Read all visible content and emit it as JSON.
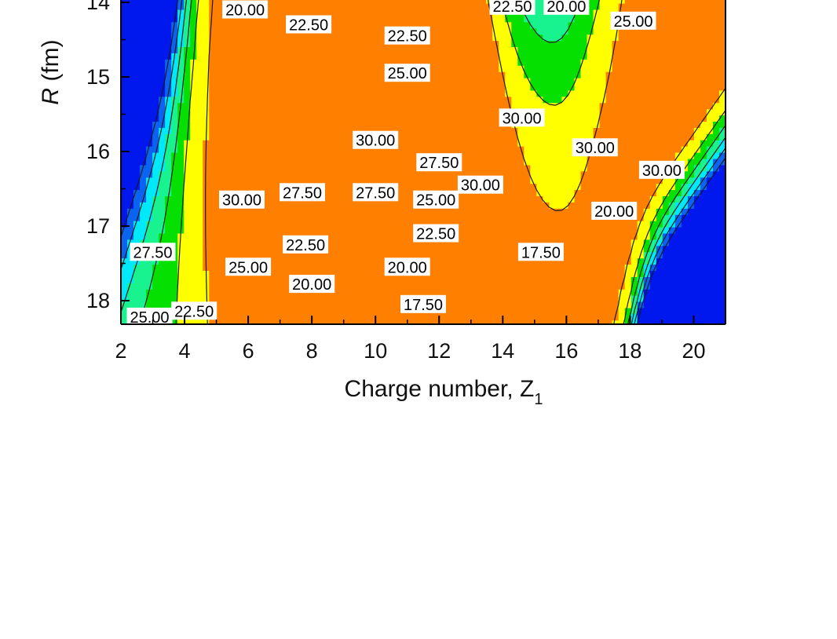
{
  "chart_data": {
    "type": "contour",
    "xlabel": "Charge number, Z",
    "xlabel_subscript": "1",
    "ylabel_var": "R",
    "ylabel_unit": "(fm)",
    "xlim": [
      2,
      21
    ],
    "ylim": [
      13.9,
      18.3
    ],
    "y_inverted": true,
    "x_ticks": [
      2,
      4,
      6,
      8,
      10,
      12,
      14,
      16,
      18,
      20
    ],
    "y_ticks": [
      14,
      15,
      16,
      17,
      18
    ],
    "levels": [
      17.5,
      20.0,
      22.5,
      25.0,
      27.5,
      30.0
    ],
    "colormap": [
      "#0018ee",
      "#0a64f0",
      "#00e9fa",
      "#18f28f",
      "#05e000",
      "#ffff00",
      "#ff8000",
      "#f00000"
    ],
    "peaks": [
      {
        "x": 2.0,
        "y": 15.0,
        "value": -5
      },
      {
        "x": 21.0,
        "y": 18.0,
        "value": 0
      },
      {
        "x": 3.0,
        "y": 16.2,
        "value": 27
      },
      {
        "x": 5.0,
        "y": 15.9,
        "value": 31
      },
      {
        "x": 9.2,
        "y": 15.7,
        "value": 34
      },
      {
        "x": 13.0,
        "y": 15.5,
        "value": 33
      },
      {
        "x": 15.0,
        "y": 15.4,
        "value": 31
      },
      {
        "x": 17.0,
        "y": 15.2,
        "value": 31
      },
      {
        "x": 19.8,
        "y": 15.0,
        "value": 33
      },
      {
        "x": 15.5,
        "y": 14.0,
        "value": 19
      }
    ],
    "contour_labels": [
      {
        "text": "20.00",
        "x": 5.9,
        "y": 14.1
      },
      {
        "text": "22.50",
        "x": 7.9,
        "y": 14.3
      },
      {
        "text": "22.50",
        "x": 11.0,
        "y": 14.45
      },
      {
        "text": "22.50",
        "x": 14.3,
        "y": 14.05
      },
      {
        "text": "20.00",
        "x": 16.0,
        "y": 14.05
      },
      {
        "text": "25.00",
        "x": 18.1,
        "y": 14.25
      },
      {
        "text": "25.00",
        "x": 11.0,
        "y": 14.95
      },
      {
        "text": "30.00",
        "x": 14.6,
        "y": 15.55
      },
      {
        "text": "30.00",
        "x": 10.0,
        "y": 15.85
      },
      {
        "text": "30.00",
        "x": 16.9,
        "y": 15.95
      },
      {
        "text": "27.50",
        "x": 12.0,
        "y": 16.15
      },
      {
        "text": "30.00",
        "x": 19.0,
        "y": 16.25
      },
      {
        "text": "30.00",
        "x": 13.3,
        "y": 16.45
      },
      {
        "text": "30.00",
        "x": 5.8,
        "y": 16.65
      },
      {
        "text": "27.50",
        "x": 7.7,
        "y": 16.55
      },
      {
        "text": "27.50",
        "x": 10.0,
        "y": 16.55
      },
      {
        "text": "25.00",
        "x": 11.9,
        "y": 16.65
      },
      {
        "text": "20.00",
        "x": 17.5,
        "y": 16.8
      },
      {
        "text": "22.50",
        "x": 11.9,
        "y": 17.1
      },
      {
        "text": "22.50",
        "x": 7.8,
        "y": 17.25
      },
      {
        "text": "27.50",
        "x": 3.0,
        "y": 17.35
      },
      {
        "text": "17.50",
        "x": 15.2,
        "y": 17.35
      },
      {
        "text": "25.00",
        "x": 6.0,
        "y": 17.55
      },
      {
        "text": "20.00",
        "x": 11.0,
        "y": 17.55
      },
      {
        "text": "20.00",
        "x": 8.0,
        "y": 17.78
      },
      {
        "text": "17.50",
        "x": 11.5,
        "y": 18.05
      },
      {
        "text": "22.50",
        "x": 4.3,
        "y": 18.14
      },
      {
        "text": "25.00",
        "x": 2.9,
        "y": 18.22
      }
    ]
  }
}
